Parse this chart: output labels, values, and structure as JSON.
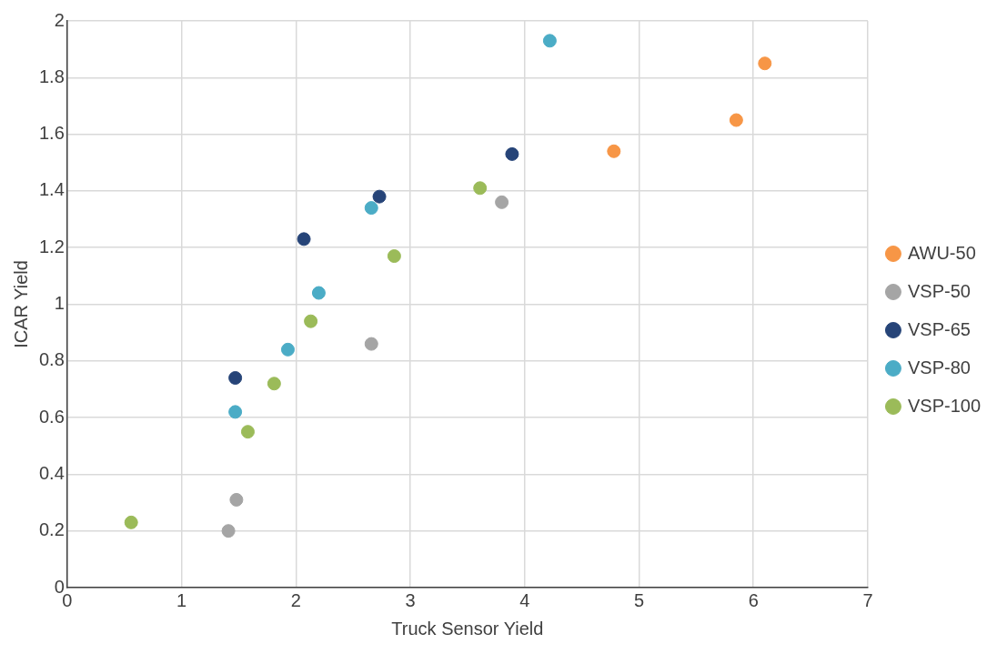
{
  "chart_data": {
    "type": "scatter",
    "xlabel": "Truck Sensor Yield",
    "ylabel": "ICAR Yield",
    "xlim": [
      0,
      7
    ],
    "xticks": [
      0,
      1,
      2,
      3,
      4,
      5,
      6,
      7
    ],
    "ylim": [
      0,
      2
    ],
    "yticks": [
      0,
      {
        "value": 0.2,
        "label": "0.2"
      },
      {
        "value": 0.4,
        "label": "0.4"
      },
      {
        "value": 0.6,
        "label": "0.6"
      },
      {
        "value": 0.8,
        "label": "0.8"
      },
      1,
      {
        "value": 1.2,
        "label": "1.2"
      },
      {
        "value": 1.4,
        "label": "1.4"
      },
      {
        "value": 1.6,
        "label": "1.6"
      },
      {
        "value": 1.8,
        "label": "1.8"
      },
      2
    ],
    "grid": true,
    "legend": "right",
    "marker": "circle",
    "series": [
      {
        "name": "AWU-50",
        "color": "#f79646",
        "x": [
          4.78,
          5.85,
          6.1
        ],
        "values": [
          1.54,
          1.65,
          1.85
        ]
      },
      {
        "name": "VSP-50",
        "color": "#a5a5a5",
        "x": [
          1.41,
          1.48,
          2.66,
          3.8
        ],
        "values": [
          0.2,
          0.31,
          0.86,
          1.36
        ]
      },
      {
        "name": "VSP-65",
        "color": "#264478",
        "x": [
          1.47,
          2.07,
          2.73,
          3.89
        ],
        "values": [
          0.74,
          1.23,
          1.38,
          1.53
        ]
      },
      {
        "name": "VSP-80",
        "color": "#4bacc6",
        "x": [
          1.47,
          1.93,
          2.2,
          2.66,
          4.22
        ],
        "values": [
          0.62,
          0.84,
          1.04,
          1.34,
          1.93
        ]
      },
      {
        "name": "VSP-100",
        "color": "#9bbb59",
        "x": [
          0.56,
          1.58,
          1.81,
          2.13,
          2.86,
          3.61
        ],
        "values": [
          0.23,
          0.55,
          0.72,
          0.94,
          1.17,
          1.41
        ]
      }
    ]
  }
}
